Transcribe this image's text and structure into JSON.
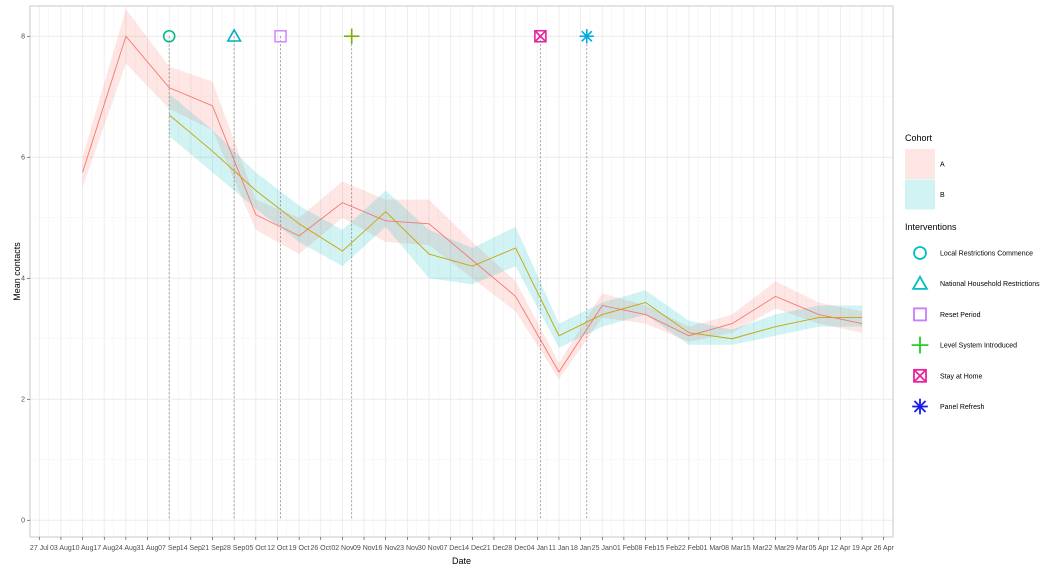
{
  "chart_data": {
    "type": "line",
    "xlabel": "Date",
    "ylabel": "Mean contacts",
    "ylim": [
      0,
      8.5
    ],
    "xlim": [
      "2020-07-27",
      "2021-04-26"
    ],
    "yticks": [
      0,
      2,
      4,
      6,
      8
    ],
    "x_tick_labels": [
      "27 Jul",
      "03 Aug",
      "10 Aug",
      "17 Aug",
      "24 Aug",
      "31 Aug",
      "07 Sep",
      "14 Sep",
      "21 Sep",
      "28 Sep",
      "05 Oct",
      "12 Oct",
      "19 Oct",
      "26 Oct",
      "02 Nov",
      "09 Nov",
      "16 Nov",
      "23 Nov",
      "30 Nov",
      "07 Dec",
      "14 Dec",
      "21 Dec",
      "28 Dec",
      "04 Jan",
      "11 Jan",
      "18 Jan",
      "25 Jan",
      "01 Feb",
      "08 Feb",
      "15 Feb",
      "22 Feb",
      "01 Mar",
      "08 Mar",
      "15 Mar",
      "22 Mar",
      "29 Mar",
      "05 Apr",
      "12 Apr",
      "19 Apr",
      "26 Apr"
    ],
    "grid": true,
    "legend": [
      {
        "title": "Cohort",
        "entries": [
          {
            "label": "A",
            "color": "#F8766D"
          },
          {
            "label": "B",
            "color": "#00BFC4"
          }
        ]
      },
      {
        "title": "Interventions",
        "entries": [
          {
            "label": "Local Restrictions Commence",
            "shape": "circle",
            "color": "#00BFC4"
          },
          {
            "label": "National Household Restrictions",
            "shape": "triangle",
            "color": "#00BFC4"
          },
          {
            "label": "Reset Period",
            "shape": "square",
            "color": "#C77CFF"
          },
          {
            "label": "Level System Introduced",
            "shape": "plus",
            "color": "#22CC22"
          },
          {
            "label": "Stay at Home",
            "shape": "square-x",
            "color": "#E6259F"
          },
          {
            "label": "Panel Refresh",
            "shape": "asterisk",
            "color": "#1A1AE6"
          }
        ]
      }
    ],
    "series": [
      {
        "name": "A",
        "color": "#F8766D",
        "x": [
          "2020-08-10",
          "2020-08-24",
          "2020-09-07",
          "2020-09-21",
          "2020-10-05",
          "2020-10-19",
          "2020-11-02",
          "2020-11-16",
          "2020-11-30",
          "2020-12-14",
          "2020-12-28",
          "2021-01-11",
          "2021-01-25",
          "2021-02-08",
          "2021-02-22",
          "2021-03-08",
          "2021-03-22",
          "2021-04-05",
          "2021-04-19"
        ],
        "y": [
          5.75,
          8.0,
          7.15,
          6.85,
          5.05,
          4.7,
          5.25,
          4.95,
          4.9,
          4.3,
          3.7,
          2.45,
          3.55,
          3.4,
          3.05,
          3.25,
          3.7,
          3.4,
          3.25
        ],
        "ci_low": [
          5.5,
          7.55,
          6.8,
          6.45,
          4.8,
          4.4,
          5.0,
          4.6,
          4.55,
          4.0,
          3.45,
          2.33,
          3.35,
          3.25,
          2.95,
          3.1,
          3.5,
          3.25,
          3.1
        ],
        "ci_high": [
          6.0,
          8.45,
          7.5,
          7.25,
          5.3,
          5.0,
          5.6,
          5.3,
          5.3,
          4.6,
          3.95,
          2.6,
          3.75,
          3.55,
          3.2,
          3.4,
          3.95,
          3.6,
          3.45
        ]
      },
      {
        "name": "B",
        "color": "#00BFC4",
        "line_color": "#C9A400",
        "x": [
          "2020-09-07",
          "2020-09-21",
          "2020-10-05",
          "2020-10-19",
          "2020-11-02",
          "2020-11-16",
          "2020-11-30",
          "2020-12-14",
          "2020-12-28",
          "2021-01-11",
          "2021-01-25",
          "2021-02-08",
          "2021-02-22",
          "2021-03-08",
          "2021-03-22",
          "2021-04-05",
          "2021-04-19"
        ],
        "y": [
          6.7,
          6.1,
          5.45,
          4.9,
          4.45,
          5.1,
          4.4,
          4.2,
          4.5,
          3.05,
          3.4,
          3.6,
          3.1,
          3.0,
          3.2,
          3.35,
          3.35
        ],
        "ci_low": [
          6.35,
          5.75,
          5.15,
          4.6,
          4.2,
          4.85,
          4.0,
          3.9,
          4.2,
          2.85,
          3.2,
          3.4,
          2.9,
          2.9,
          3.05,
          3.2,
          3.2
        ],
        "ci_high": [
          7.05,
          6.45,
          5.75,
          5.2,
          4.8,
          5.45,
          4.8,
          4.5,
          4.85,
          3.25,
          3.6,
          3.8,
          3.3,
          3.15,
          3.4,
          3.55,
          3.55
        ]
      }
    ],
    "interventions": [
      {
        "label": "Local Restrictions Commence",
        "date": "2020-09-07",
        "y": 8,
        "shape": "circle",
        "color": "#00BB88"
      },
      {
        "label": "National Household Restrictions",
        "date": "2020-09-28",
        "y": 8,
        "shape": "triangle",
        "color": "#00AFC4"
      },
      {
        "label": "Reset Period",
        "date": "2020-10-13",
        "y": 8,
        "shape": "square",
        "color": "#D68CFF"
      },
      {
        "label": "Level System Introduced",
        "date": "2020-11-05",
        "y": 8,
        "shape": "plus",
        "color": "#7CAE00"
      },
      {
        "label": "Stay at Home",
        "date": "2021-01-05",
        "y": 8,
        "shape": "square-x",
        "color": "#E6259F"
      },
      {
        "label": "Panel Refresh",
        "date": "2021-01-20",
        "y": 8,
        "shape": "asterisk",
        "color": "#00A9E0"
      }
    ]
  }
}
